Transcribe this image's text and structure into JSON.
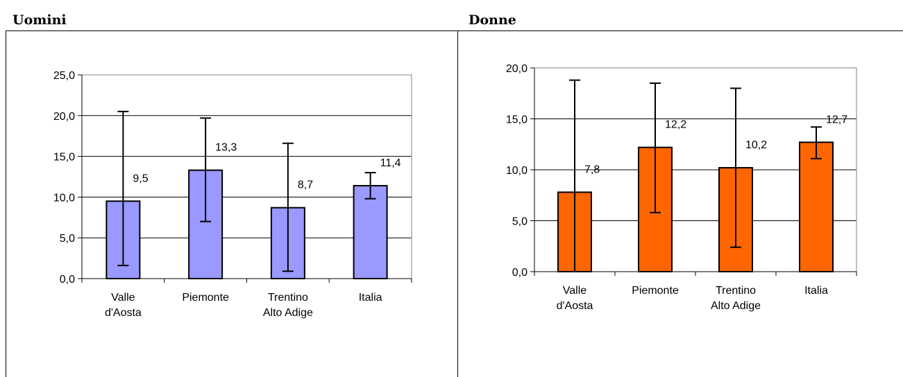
{
  "chart_data": [
    {
      "type": "bar",
      "title": "Uomini",
      "categories": [
        [
          "Valle",
          "d'Aosta"
        ],
        [
          "Piemonte"
        ],
        [
          "Trentino",
          "Alto Adige"
        ],
        [
          "Italia"
        ]
      ],
      "values": [
        9.5,
        13.3,
        8.7,
        11.4
      ],
      "value_labels": [
        "9,5",
        "13,3",
        "8,7",
        "11,4"
      ],
      "error_low": [
        1.6,
        7.0,
        0.9,
        9.8
      ],
      "error_high": [
        20.5,
        19.7,
        16.6,
        13.0
      ],
      "ylim": [
        0,
        25
      ],
      "yticks": [
        0,
        5,
        10,
        15,
        20,
        25
      ],
      "ytick_labels": [
        "0,0",
        "5,0",
        "10,0",
        "15,0",
        "20,0",
        "25,0"
      ],
      "bar_color": "#9999FF",
      "grid": true
    },
    {
      "type": "bar",
      "title": "Donne",
      "categories": [
        [
          "Valle",
          "d'Aosta"
        ],
        [
          "Piemonte"
        ],
        [
          "Trentino",
          "Alto Adige"
        ],
        [
          "Italia"
        ]
      ],
      "values": [
        7.8,
        12.2,
        10.2,
        12.7
      ],
      "value_labels": [
        "7,8",
        "12,2",
        "10,2",
        "12,7"
      ],
      "error_low": [
        0.0,
        5.8,
        2.4,
        11.1
      ],
      "error_high": [
        18.8,
        18.5,
        18.0,
        14.2
      ],
      "ylim": [
        0,
        20
      ],
      "yticks": [
        0,
        5,
        10,
        15,
        20
      ],
      "ytick_labels": [
        "0,0",
        "5,0",
        "10,0",
        "15,0",
        "20,0"
      ],
      "bar_color": "#FF6600",
      "grid": true
    }
  ]
}
